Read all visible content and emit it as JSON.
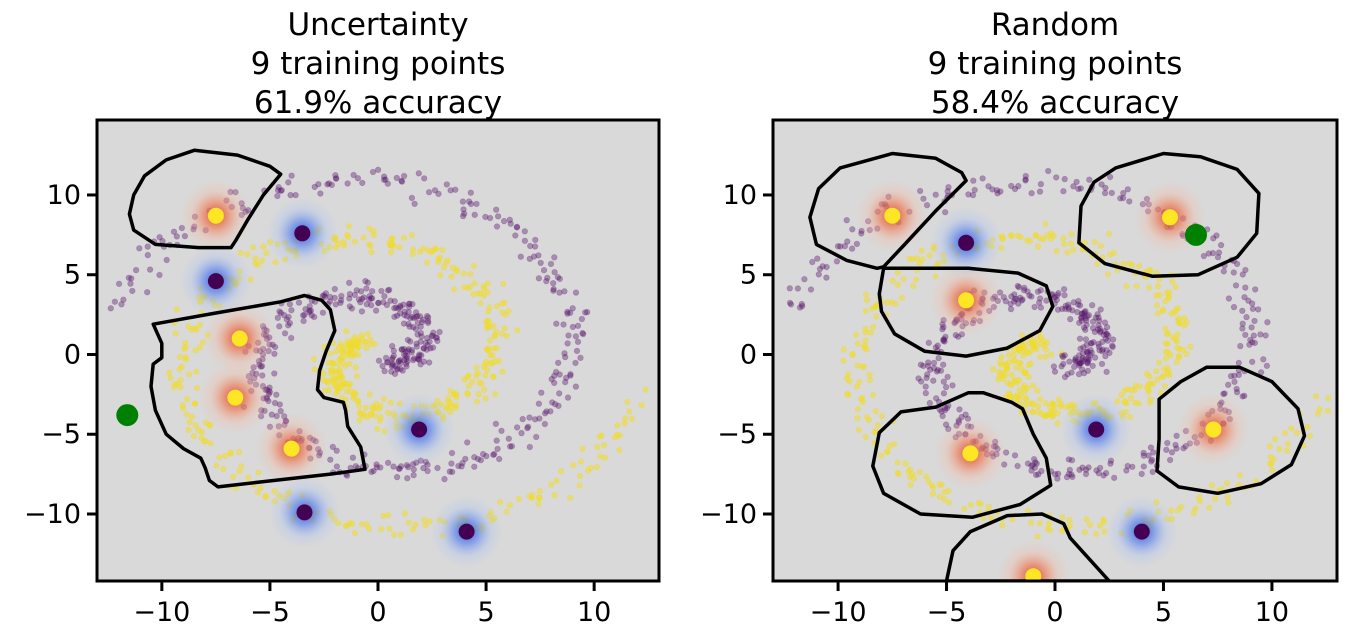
{
  "chart_data": [
    {
      "type": "scatter",
      "title": [
        "Uncertainty",
        "9 training points",
        "61.9% accuracy"
      ],
      "xlabel": "",
      "ylabel": "",
      "xlim": [
        -13,
        13
      ],
      "ylim": [
        -14.2,
        14.7
      ],
      "xticks": [
        -10,
        -5,
        0,
        5,
        10
      ],
      "yticks": [
        -10,
        -5,
        0,
        5,
        10
      ],
      "xtick_labels": [
        "−10",
        "−5",
        "0",
        "5",
        "10"
      ],
      "ytick_labels": [
        "−10",
        "−5",
        "0",
        "5",
        "10"
      ],
      "grid": false,
      "background": "#d9d9d9",
      "series": [
        {
          "kind": "labeled",
          "class": 1,
          "color": "#fde725",
          "points": [
            [
              -7.5,
              8.7
            ],
            [
              -6.4,
              1.0
            ],
            [
              -6.6,
              -2.7
            ],
            [
              -4.0,
              -5.9
            ]
          ]
        },
        {
          "kind": "labeled",
          "class": 0,
          "color": "#440154",
          "points": [
            [
              -3.5,
              7.6
            ],
            [
              -7.5,
              4.6
            ],
            [
              1.9,
              -4.7
            ],
            [
              -3.4,
              -9.9
            ],
            [
              4.1,
              -11.1
            ]
          ]
        },
        {
          "kind": "query",
          "color": "#008000",
          "points": [
            [
              -11.6,
              -3.8
            ]
          ]
        }
      ],
      "boundaries": [
        [
          [
            -8.5,
            12.8
          ],
          [
            -6.5,
            12.5
          ],
          [
            -5.0,
            11.8
          ],
          [
            -4.5,
            11.3
          ],
          [
            -5.3,
            10.0
          ],
          [
            -6.0,
            8.5
          ],
          [
            -6.6,
            7.1
          ],
          [
            -6.8,
            6.7
          ],
          [
            -8.3,
            6.7
          ],
          [
            -10.3,
            6.9
          ],
          [
            -11.3,
            7.8
          ],
          [
            -11.5,
            8.8
          ],
          [
            -11.3,
            10.0
          ],
          [
            -10.8,
            11.2
          ],
          [
            -9.8,
            12.2
          ]
        ],
        [
          [
            -10.4,
            1.9
          ],
          [
            -7.5,
            2.6
          ],
          [
            -4.5,
            3.3
          ],
          [
            -3.4,
            3.7
          ],
          [
            -2.6,
            3.4
          ],
          [
            -2.2,
            2.8
          ],
          [
            -2.0,
            1.5
          ],
          [
            -2.4,
            0.2
          ],
          [
            -2.7,
            -1.0
          ],
          [
            -2.8,
            -2.2
          ],
          [
            -2.5,
            -2.7
          ],
          [
            -1.6,
            -3.0
          ],
          [
            -1.5,
            -3.5
          ],
          [
            -1.4,
            -4.5
          ],
          [
            -0.8,
            -5.8
          ],
          [
            -0.6,
            -7.2
          ],
          [
            -2.2,
            -7.5
          ],
          [
            -5.5,
            -8.0
          ],
          [
            -7.4,
            -8.3
          ],
          [
            -7.8,
            -7.9
          ],
          [
            -8.0,
            -7.1
          ],
          [
            -8.2,
            -6.5
          ],
          [
            -9.0,
            -5.9
          ],
          [
            -9.8,
            -5.0
          ],
          [
            -10.3,
            -3.5
          ],
          [
            -10.5,
            -2.0
          ],
          [
            -10.4,
            -0.6
          ],
          [
            -10.0,
            -0.2
          ],
          [
            -10.0,
            0.7
          ]
        ]
      ]
    },
    {
      "type": "scatter",
      "title": [
        "Random",
        "9 training points",
        "58.4% accuracy"
      ],
      "xlabel": "",
      "ylabel": "",
      "xlim": [
        -13,
        13
      ],
      "ylim": [
        -14.2,
        14.7
      ],
      "xticks": [
        -10,
        -5,
        0,
        5,
        10
      ],
      "yticks": [
        -10,
        -5,
        0,
        5,
        10
      ],
      "xtick_labels": [
        "−10",
        "−5",
        "0",
        "5",
        "10"
      ],
      "ytick_labels": [
        "−10",
        "−5",
        "0",
        "5",
        "10"
      ],
      "grid": false,
      "background": "#d9d9d9",
      "series": [
        {
          "kind": "labeled",
          "class": 1,
          "color": "#fde725",
          "points": [
            [
              -7.5,
              8.7
            ],
            [
              -4.1,
              3.4
            ],
            [
              5.3,
              8.6
            ],
            [
              -3.9,
              -6.2
            ],
            [
              7.3,
              -4.7
            ],
            [
              -1.0,
              -13.9
            ]
          ]
        },
        {
          "kind": "labeled",
          "class": 0,
          "color": "#440154",
          "points": [
            [
              -4.1,
              7.0
            ],
            [
              1.9,
              -4.7
            ],
            [
              4.0,
              -11.1
            ]
          ]
        },
        {
          "kind": "query",
          "color": "#008000",
          "points": [
            [
              6.5,
              7.5
            ]
          ]
        }
      ],
      "boundaries": [
        [
          [
            -7.5,
            12.6
          ],
          [
            -5.5,
            12.3
          ],
          [
            -4.3,
            11.4
          ],
          [
            -4.1,
            10.9
          ],
          [
            -5.5,
            9.0
          ],
          [
            -7.0,
            6.8
          ],
          [
            -7.9,
            5.5
          ],
          [
            -8.2,
            5.4
          ],
          [
            -9.6,
            5.9
          ],
          [
            -11.0,
            6.9
          ],
          [
            -11.3,
            8.6
          ],
          [
            -10.9,
            10.4
          ],
          [
            -9.9,
            11.7
          ]
        ],
        [
          [
            -7.9,
            5.4
          ],
          [
            -4.0,
            5.4
          ],
          [
            -1.7,
            5.1
          ],
          [
            -0.4,
            4.3
          ],
          [
            -0.1,
            3.0
          ],
          [
            -0.7,
            1.5
          ],
          [
            -2.2,
            0.4
          ],
          [
            -4.1,
            -0.1
          ],
          [
            -6.0,
            0.2
          ],
          [
            -7.4,
            1.3
          ],
          [
            -8.0,
            2.7
          ],
          [
            -8.1,
            3.8
          ]
        ],
        [
          [
            2.8,
            11.7
          ],
          [
            5.0,
            12.6
          ],
          [
            6.7,
            12.4
          ],
          [
            8.4,
            11.6
          ],
          [
            9.4,
            10.1
          ],
          [
            9.3,
            7.6
          ],
          [
            8.4,
            6.1
          ],
          [
            6.6,
            5.0
          ],
          [
            4.5,
            4.9
          ],
          [
            2.3,
            5.7
          ],
          [
            1.1,
            7.0
          ],
          [
            1.2,
            9.3
          ],
          [
            1.8,
            10.8
          ]
        ],
        [
          [
            -7.1,
            -3.6
          ],
          [
            -5.5,
            -3.3
          ],
          [
            -4.0,
            -2.4
          ],
          [
            -3.3,
            -2.4
          ],
          [
            -2.0,
            -3.0
          ],
          [
            -1.5,
            -3.4
          ],
          [
            -1.0,
            -5.0
          ],
          [
            -0.4,
            -6.5
          ],
          [
            -0.2,
            -8.2
          ],
          [
            -1.6,
            -9.4
          ],
          [
            -3.8,
            -10.2
          ],
          [
            -6.2,
            -10.0
          ],
          [
            -7.9,
            -8.7
          ],
          [
            -8.4,
            -7.0
          ],
          [
            -8.1,
            -4.9
          ]
        ],
        [
          [
            4.8,
            -2.8
          ],
          [
            5.8,
            -1.7
          ],
          [
            7.0,
            -0.8
          ],
          [
            8.5,
            -0.8
          ],
          [
            10.0,
            -1.7
          ],
          [
            11.2,
            -3.4
          ],
          [
            11.5,
            -5.1
          ],
          [
            10.9,
            -6.9
          ],
          [
            9.5,
            -8.1
          ],
          [
            7.5,
            -8.7
          ],
          [
            5.7,
            -8.3
          ],
          [
            4.7,
            -7.3
          ],
          [
            4.8,
            -5.3
          ]
        ],
        [
          [
            -5.0,
            -14.2
          ],
          [
            -4.7,
            -12.3
          ],
          [
            -3.9,
            -11.1
          ],
          [
            -2.2,
            -10.1
          ],
          [
            -0.6,
            -10.0
          ],
          [
            0.4,
            -10.6
          ],
          [
            0.7,
            -11.5
          ],
          [
            1.3,
            -12.4
          ],
          [
            2.5,
            -14.2
          ]
        ]
      ]
    }
  ]
}
